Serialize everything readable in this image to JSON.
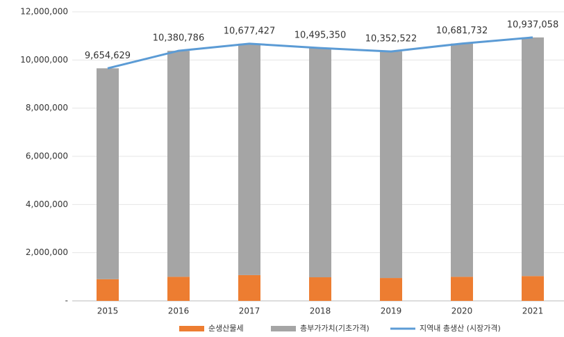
{
  "chart_data": {
    "type": "bar",
    "stacked": true,
    "categories": [
      "2015",
      "2016",
      "2017",
      "2018",
      "2019",
      "2020",
      "2021"
    ],
    "series": [
      {
        "name": "순생산물세",
        "color": "#ed7d31",
        "values": [
          900000,
          1000000,
          1070000,
          980000,
          950000,
          1000000,
          1030000
        ]
      },
      {
        "name": "총부가가치(기초가격)",
        "color": "#a5a5a5",
        "values": [
          8754629,
          9380786,
          9607427,
          9515350,
          9402522,
          9681732,
          9907058
        ]
      },
      {
        "name": "지역내 총생산 (시장가격)",
        "color": "#5b9bd5",
        "type": "line",
        "values": [
          9654629,
          10380786,
          10677427,
          10495350,
          10352522,
          10681732,
          10937058
        ],
        "value_labels": [
          "9,654,629",
          "10,380,786",
          "10,677,427",
          "10,495,350",
          "10,352,522",
          "10,681,732",
          "10,937,058"
        ]
      }
    ],
    "ylim": [
      0,
      12000000
    ],
    "yticks": [
      {
        "value": 0,
        "label": "-"
      },
      {
        "value": 2000000,
        "label": "2,000,000"
      },
      {
        "value": 4000000,
        "label": "4,000,000"
      },
      {
        "value": 6000000,
        "label": "6,000,000"
      },
      {
        "value": 8000000,
        "label": "8,000,000"
      },
      {
        "value": 10000000,
        "label": "10,000,000"
      },
      {
        "value": 12000000,
        "label": "12,000,000"
      }
    ],
    "grid": true,
    "legend": "bottom"
  }
}
